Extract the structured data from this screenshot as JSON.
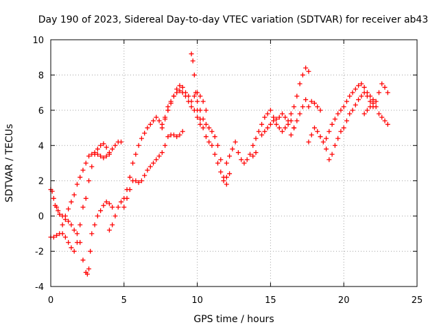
{
  "chart_data": {
    "type": "scatter",
    "title": "Day 190 of 2023, Sidereal Day-to-day VTEC variation (SDTVAR) for receiver ab43",
    "xlabel": "GPS time / hours",
    "ylabel": "SDTVAR / TECUs",
    "xlim": [
      0,
      25
    ],
    "ylim": [
      -4,
      10
    ],
    "xticks": [
      0,
      5,
      10,
      15,
      20,
      25
    ],
    "yticks": [
      -4,
      -2,
      0,
      2,
      4,
      6,
      8,
      10
    ],
    "grid": true,
    "legend": "none",
    "marker": "plus",
    "color": "#ff0000",
    "series": [
      {
        "x": [
          0.0,
          0.1,
          0.2,
          0.3,
          0.4,
          0.5,
          0.6,
          0.8,
          1.0,
          1.2,
          1.4,
          1.6,
          1.8,
          2.0,
          2.2,
          2.4,
          2.5,
          2.6,
          2.7,
          2.8,
          3.0,
          3.2,
          3.4,
          3.6,
          3.8,
          4.0,
          4.2
        ],
        "y": [
          1.5,
          1.4,
          1.0,
          0.6,
          0.5,
          0.3,
          0.1,
          0.0,
          -0.2,
          -0.3,
          -0.5,
          -0.8,
          -1.0,
          -1.5,
          -2.5,
          -3.2,
          -3.3,
          -3.0,
          -2.0,
          -1.0,
          -0.5,
          0.0,
          0.3,
          0.6,
          0.8,
          0.7,
          0.5
        ]
      },
      {
        "x": [
          0.0,
          0.2,
          0.4,
          0.6,
          0.8,
          1.0,
          1.2,
          1.4,
          1.6,
          1.8,
          2.0,
          2.2,
          2.4,
          2.6,
          2.8,
          3.0,
          3.2,
          3.4,
          3.6,
          3.8,
          4.0,
          4.2,
          4.4,
          4.6,
          4.8
        ],
        "y": [
          -1.2,
          -1.2,
          -1.1,
          -1.0,
          -0.5,
          0.0,
          0.4,
          0.8,
          1.2,
          1.8,
          2.2,
          2.6,
          3.0,
          3.4,
          3.5,
          3.6,
          3.5,
          3.4,
          3.3,
          3.4,
          3.6,
          3.8,
          4.0,
          4.2,
          4.2
        ]
      },
      {
        "x": [
          0.8,
          1.0,
          1.2,
          1.4,
          1.6,
          1.8,
          2.0,
          2.2,
          2.4,
          2.6,
          2.8,
          3.0,
          3.2,
          3.4,
          3.6,
          3.8,
          4.0
        ],
        "y": [
          -1.0,
          -1.2,
          -1.5,
          -1.8,
          -2.0,
          -1.5,
          -0.5,
          0.5,
          1.0,
          2.0,
          2.8,
          3.5,
          3.8,
          4.0,
          4.1,
          3.9,
          3.5
        ]
      },
      {
        "x": [
          4.0,
          4.2,
          4.4,
          4.6,
          4.8,
          5.0,
          5.2,
          5.4,
          5.6,
          5.8,
          6.0,
          6.2,
          6.4,
          6.6,
          6.8,
          7.0,
          7.2,
          7.4,
          7.6,
          7.8,
          8.0
        ],
        "y": [
          -0.8,
          -0.5,
          0.0,
          0.5,
          0.8,
          1.0,
          1.5,
          2.2,
          3.0,
          3.5,
          4.0,
          4.4,
          4.7,
          5.0,
          5.2,
          5.4,
          5.6,
          5.4,
          5.2,
          5.6,
          6.0
        ]
      },
      {
        "x": [
          5.0,
          5.2,
          5.4,
          5.6,
          5.8,
          6.0,
          6.2,
          6.4,
          6.6,
          6.8,
          7.0,
          7.2,
          7.4,
          7.6,
          7.8,
          8.0,
          8.2,
          8.4,
          8.6,
          8.8,
          9.0
        ],
        "y": [
          0.5,
          1.0,
          1.5,
          2.0,
          2.0,
          1.9,
          2.0,
          2.3,
          2.6,
          2.8,
          3.0,
          3.2,
          3.4,
          3.6,
          4.0,
          4.5,
          4.6,
          4.6,
          4.5,
          4.6,
          4.8
        ]
      },
      {
        "x": [
          7.6,
          7.8,
          8.0,
          8.2,
          8.4,
          8.6,
          8.8,
          9.0,
          9.2,
          9.4,
          9.6,
          9.8,
          10.0,
          10.2,
          10.4,
          10.6
        ],
        "y": [
          5.0,
          5.5,
          6.0,
          6.4,
          6.8,
          7.2,
          7.4,
          7.3,
          7.0,
          6.8,
          6.5,
          6.8,
          7.0,
          6.8,
          6.5,
          6.0
        ]
      },
      {
        "x": [
          8.0,
          8.2,
          8.4,
          8.6,
          8.8,
          9.0,
          9.2,
          9.4,
          9.6,
          9.8,
          10.0,
          10.2
        ],
        "y": [
          6.2,
          6.5,
          6.8,
          7.0,
          7.1,
          7.0,
          6.8,
          6.5,
          6.2,
          6.0,
          5.6,
          5.2
        ]
      },
      {
        "x": [
          9.6,
          9.7,
          9.8,
          9.9,
          10.0,
          10.2,
          10.4,
          10.6,
          10.8,
          11.0,
          11.2,
          11.4,
          11.6,
          11.8,
          12.0
        ],
        "y": [
          9.2,
          8.8,
          8.0,
          7.0,
          6.0,
          5.5,
          5.0,
          4.5,
          4.2,
          4.0,
          3.5,
          3.0,
          2.5,
          2.0,
          2.2
        ]
      },
      {
        "x": [
          10.0,
          10.2,
          10.4,
          10.6,
          10.8,
          11.0,
          11.2,
          11.4,
          11.6,
          11.8,
          12.0,
          12.2
        ],
        "y": [
          6.5,
          6.0,
          5.5,
          5.2,
          5.0,
          4.8,
          4.5,
          4.0,
          3.2,
          2.2,
          1.8,
          2.4
        ]
      },
      {
        "x": [
          12.0,
          12.2,
          12.4,
          12.6,
          12.8,
          13.0,
          13.2,
          13.4,
          13.6,
          13.8,
          14.0
        ],
        "y": [
          3.0,
          3.4,
          3.8,
          4.2,
          3.6,
          3.2,
          3.0,
          3.2,
          3.5,
          3.4,
          3.6
        ]
      },
      {
        "x": [
          13.8,
          14.0,
          14.2,
          14.4,
          14.6,
          14.8,
          15.0,
          15.2,
          15.4,
          15.6,
          15.8,
          16.0,
          16.2,
          16.4,
          16.6
        ],
        "y": [
          4.0,
          4.4,
          4.8,
          5.2,
          5.6,
          5.8,
          6.0,
          5.6,
          5.2,
          5.0,
          4.8,
          5.0,
          5.2,
          5.4,
          5.0
        ]
      },
      {
        "x": [
          14.4,
          14.6,
          14.8,
          15.0,
          15.2,
          15.4,
          15.6,
          15.8,
          16.0,
          16.2,
          16.4,
          16.6,
          16.8,
          17.0,
          17.2,
          17.4,
          17.6
        ],
        "y": [
          4.6,
          4.8,
          5.0,
          5.2,
          5.4,
          5.5,
          5.6,
          5.8,
          5.6,
          5.4,
          5.8,
          6.2,
          6.8,
          7.5,
          8.0,
          8.4,
          8.2
        ]
      },
      {
        "x": [
          16.4,
          16.6,
          16.8,
          17.0,
          17.2,
          17.4,
          17.6,
          17.8,
          18.0,
          18.2,
          18.4
        ],
        "y": [
          4.6,
          5.0,
          5.4,
          5.8,
          6.2,
          6.6,
          6.2,
          6.5,
          6.4,
          6.2,
          6.0
        ]
      },
      {
        "x": [
          17.6,
          17.8,
          18.0,
          18.2,
          18.4,
          18.6,
          18.8,
          19.0,
          19.2,
          19.4,
          19.6,
          19.8,
          20.0,
          20.2,
          20.4
        ],
        "y": [
          4.2,
          4.6,
          5.0,
          4.8,
          4.5,
          4.2,
          3.8,
          3.2,
          3.5,
          4.0,
          4.4,
          4.8,
          5.0,
          5.4,
          5.8
        ]
      },
      {
        "x": [
          18.8,
          19.0,
          19.2,
          19.4,
          19.6,
          19.8,
          20.0,
          20.2,
          20.4,
          20.6,
          20.8,
          21.0,
          21.2,
          21.4,
          21.6,
          21.8,
          22.0
        ],
        "y": [
          4.4,
          4.8,
          5.2,
          5.5,
          5.8,
          6.0,
          6.2,
          6.5,
          6.8,
          7.0,
          7.2,
          7.4,
          7.5,
          7.3,
          7.0,
          6.8,
          6.6
        ]
      },
      {
        "x": [
          20.6,
          20.8,
          21.0,
          21.2,
          21.4,
          21.6,
          21.8,
          22.0,
          22.2,
          22.4,
          22.6,
          22.8,
          23.0
        ],
        "y": [
          6.0,
          6.3,
          6.6,
          6.8,
          7.0,
          6.8,
          6.5,
          6.2,
          6.5,
          7.0,
          7.5,
          7.3,
          7.0
        ]
      },
      {
        "x": [
          21.4,
          21.6,
          21.8,
          22.0,
          22.2,
          22.4,
          22.6,
          22.8,
          23.0
        ],
        "y": [
          5.8,
          6.0,
          6.2,
          6.4,
          6.2,
          5.8,
          5.6,
          5.4,
          5.2
        ]
      }
    ]
  }
}
